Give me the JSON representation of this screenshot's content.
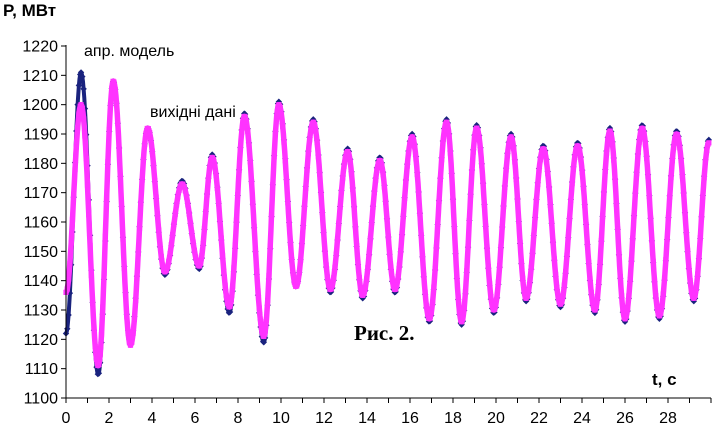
{
  "chart_data": {
    "type": "line",
    "title": "",
    "caption": "Рис. 2.",
    "ylabel": "P, МВт",
    "xlabel": "t, c",
    "xlim": [
      0,
      30
    ],
    "ylim": [
      1100,
      1220
    ],
    "x_ticks": [
      0,
      2,
      4,
      6,
      8,
      10,
      12,
      14,
      16,
      18,
      20,
      22,
      24,
      26,
      28
    ],
    "y_ticks": [
      1100,
      1110,
      1120,
      1130,
      1140,
      1150,
      1160,
      1170,
      1180,
      1190,
      1200,
      1210,
      1220
    ],
    "grid": false,
    "annotations": [
      "апр. модель",
      "вихідні дані"
    ],
    "series": [
      {
        "name": "апр. модель",
        "color": "#1a237e",
        "marker": "diamond",
        "peaks_x": [
          0.0,
          0.7,
          1.5,
          2.2,
          3.0,
          3.8,
          4.6,
          5.4,
          6.2,
          6.8,
          7.6,
          8.3,
          9.2,
          9.9,
          10.7,
          11.5,
          12.3,
          13.1,
          13.8,
          14.6,
          15.3,
          16.1,
          16.9,
          17.7,
          18.4,
          19.1,
          19.9,
          20.7,
          21.4,
          22.2,
          23.0,
          23.8,
          24.6,
          25.3,
          26.0,
          26.8,
          27.6,
          28.4,
          29.2,
          29.9
        ],
        "peaks_y": [
          1122,
          1211,
          1108,
          1208,
          1119,
          1192,
          1142,
          1174,
          1144,
          1183,
          1129,
          1197,
          1119,
          1201,
          1138,
          1195,
          1136,
          1185,
          1134,
          1182,
          1136,
          1190,
          1126,
          1195,
          1125,
          1193,
          1129,
          1190,
          1133,
          1186,
          1131,
          1187,
          1129,
          1192,
          1126,
          1193,
          1127,
          1191,
          1133,
          1188
        ]
      },
      {
        "name": "вихідні дані",
        "color": "#ff33ff",
        "marker": "square",
        "peaks_x": [
          0.0,
          0.7,
          1.5,
          2.2,
          3.0,
          3.8,
          4.6,
          5.4,
          6.2,
          6.8,
          7.6,
          8.3,
          9.2,
          9.9,
          10.7,
          11.5,
          12.3,
          13.1,
          13.8,
          14.6,
          15.3,
          16.1,
          16.9,
          17.7,
          18.4,
          19.1,
          19.9,
          20.7,
          21.4,
          22.2,
          23.0,
          23.8,
          24.6,
          25.3,
          26.0,
          26.8,
          27.6,
          28.4,
          29.2,
          29.9
        ],
        "peaks_y": [
          1136,
          1200,
          1111,
          1208,
          1118,
          1192,
          1143,
          1173,
          1145,
          1182,
          1131,
          1196,
          1121,
          1200,
          1138,
          1194,
          1137,
          1184,
          1135,
          1181,
          1137,
          1189,
          1127,
          1194,
          1126,
          1192,
          1130,
          1189,
          1134,
          1185,
          1132,
          1186,
          1130,
          1191,
          1127,
          1192,
          1128,
          1190,
          1134,
          1187
        ]
      }
    ]
  }
}
